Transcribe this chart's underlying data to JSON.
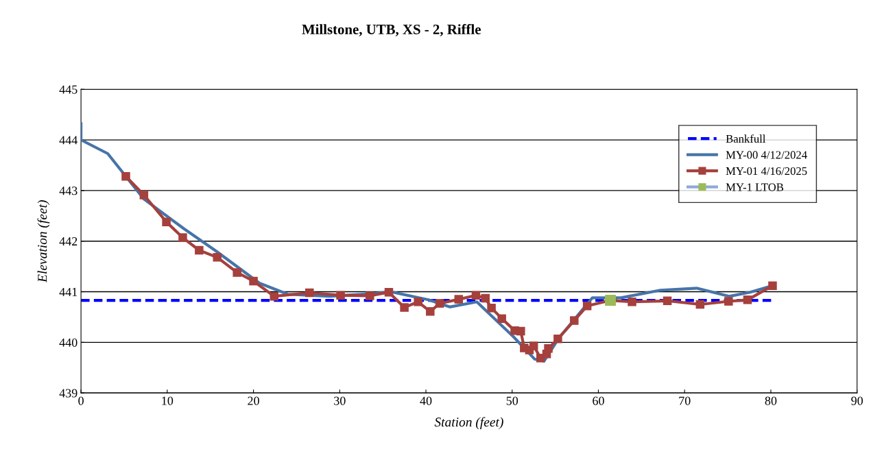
{
  "chart_data": {
    "type": "line",
    "title": "Millstone, UTB, XS - 2, Riffle",
    "xlabel": "Station (feet)",
    "ylabel": "Elevation (feet)",
    "xlim": [
      0,
      90
    ],
    "xticks": [
      0,
      10,
      20,
      30,
      40,
      50,
      60,
      70,
      80,
      90
    ],
    "ylim": [
      439,
      445
    ],
    "yticks": [
      439,
      440,
      441,
      442,
      443,
      444,
      445
    ],
    "grid": "y",
    "legend": "top right",
    "series": [
      {
        "name": "Bankfull",
        "color": "#0000ff",
        "line_style": "dashed",
        "marker": "none",
        "x": [
          0,
          80.2
        ],
        "values": [
          440.83,
          440.83
        ]
      },
      {
        "name": "MY-00 4/12/2024",
        "color": "#4674a8",
        "line_style": "solid",
        "marker": "none",
        "x": [
          0,
          0,
          3.1,
          7.3,
          11.9,
          15.7,
          20.7,
          24.0,
          28.8,
          33.5,
          35.9,
          40.3,
          42.8,
          45.9,
          50.1,
          52.6,
          53.7,
          55.4,
          59.3,
          62.6,
          67.2,
          71.4,
          75.2,
          77.6,
          80.2
        ],
        "values": [
          444.32,
          444.0,
          443.73,
          442.83,
          442.25,
          441.8,
          441.17,
          440.95,
          440.91,
          440.96,
          441.0,
          440.84,
          440.7,
          440.8,
          440.12,
          439.67,
          439.63,
          440.08,
          440.88,
          440.88,
          441.03,
          441.07,
          440.91,
          440.99,
          441.12
        ]
      },
      {
        "name": "MY-01 4/16/2025",
        "color": "#a5403d",
        "line_style": "solid",
        "marker": "square",
        "x": [
          5.2,
          7.3,
          9.9,
          11.8,
          13.7,
          15.8,
          18.1,
          20.0,
          22.4,
          26.5,
          30.1,
          33.5,
          35.7,
          37.5,
          39.1,
          40.5,
          41.6,
          43.8,
          45.8,
          46.9,
          47.6,
          48.8,
          50.3,
          51.0,
          51.4,
          52.0,
          52.5,
          53.3,
          54.0,
          54.2,
          55.3,
          57.2,
          58.7,
          61.4,
          63.9,
          68.0,
          71.8,
          75.1,
          77.3,
          80.2
        ],
        "values": [
          443.28,
          442.91,
          442.38,
          442.07,
          441.82,
          441.68,
          441.38,
          441.21,
          440.91,
          440.98,
          440.93,
          440.92,
          440.99,
          440.69,
          440.8,
          440.61,
          440.77,
          440.85,
          440.93,
          440.87,
          440.68,
          440.47,
          440.23,
          440.22,
          439.89,
          439.85,
          439.93,
          439.69,
          439.77,
          439.88,
          440.07,
          440.43,
          440.72,
          440.83,
          440.8,
          440.82,
          440.75,
          440.81,
          440.84,
          441.12
        ]
      },
      {
        "name": "MY-1 LTOB",
        "type": "scatter",
        "color": "#9bbb59",
        "marker": "square",
        "x": [
          61.4
        ],
        "values": [
          440.83
        ]
      }
    ]
  }
}
